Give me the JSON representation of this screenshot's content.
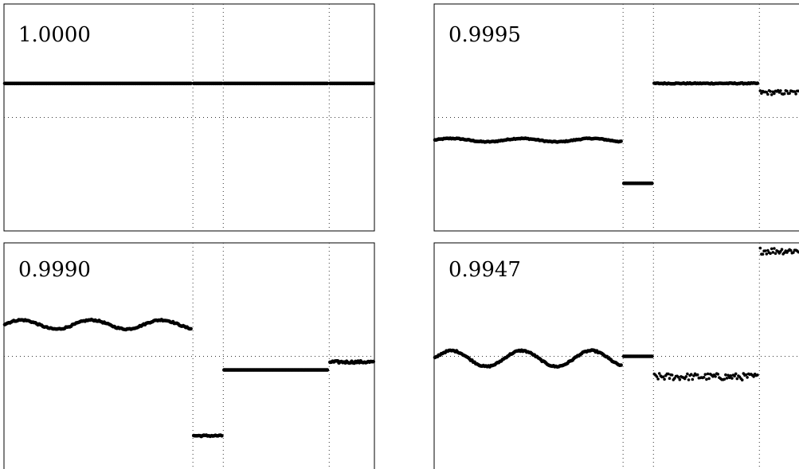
{
  "chart_data": [
    {
      "type": "scatter",
      "label": "1.0000",
      "grid": true,
      "ylim": [
        -1,
        1
      ],
      "segments": [
        {
          "x0": 0.0,
          "x1": 0.51,
          "y": 0.3,
          "wave": 0.0,
          "jitter": 0.0
        },
        {
          "x0": 0.51,
          "x1": 0.592,
          "y": 0.3,
          "wave": 0.0,
          "jitter": 0.0
        },
        {
          "x0": 0.592,
          "x1": 0.878,
          "y": 0.3,
          "wave": 0.0,
          "jitter": 0.0
        },
        {
          "x0": 0.878,
          "x1": 1.0,
          "y": 0.3,
          "wave": 0.0,
          "jitter": 0.0
        }
      ]
    },
    {
      "type": "scatter",
      "label": "0.9995",
      "grid": true,
      "ylim": [
        -1,
        1
      ],
      "segments": [
        {
          "x0": 0.0,
          "x1": 0.51,
          "y": -0.2,
          "wave": 0.015,
          "jitter": 0.004
        },
        {
          "x0": 0.51,
          "x1": 0.592,
          "y": -0.58,
          "wave": 0.0,
          "jitter": 0.0
        },
        {
          "x0": 0.592,
          "x1": 0.878,
          "y": 0.3,
          "wave": 0.0,
          "jitter": 0.004
        },
        {
          "x0": 0.878,
          "x1": 1.0,
          "y": 0.22,
          "wave": 0.0,
          "jitter": 0.02
        }
      ]
    },
    {
      "type": "scatter",
      "label": "0.9990",
      "grid": true,
      "ylim": [
        -1,
        1
      ],
      "segments": [
        {
          "x0": 0.0,
          "x1": 0.51,
          "y": 0.28,
          "wave": 0.04,
          "jitter": 0.006
        },
        {
          "x0": 0.51,
          "x1": 0.592,
          "y": -0.7,
          "wave": 0.0,
          "jitter": 0.006
        },
        {
          "x0": 0.592,
          "x1": 0.878,
          "y": -0.12,
          "wave": 0.0,
          "jitter": 0.0
        },
        {
          "x0": 0.878,
          "x1": 1.0,
          "y": -0.05,
          "wave": 0.0,
          "jitter": 0.01
        }
      ]
    },
    {
      "type": "scatter",
      "label": "0.9947",
      "grid": true,
      "ylim": [
        -1,
        1
      ],
      "segments": [
        {
          "x0": 0.0,
          "x1": 0.51,
          "y": -0.02,
          "wave": 0.07,
          "jitter": 0.006
        },
        {
          "x0": 0.51,
          "x1": 0.592,
          "y": 0.0,
          "wave": 0.0,
          "jitter": 0.0
        },
        {
          "x0": 0.592,
          "x1": 0.878,
          "y": -0.18,
          "wave": 0.0,
          "jitter": 0.03
        },
        {
          "x0": 0.878,
          "x1": 1.0,
          "y": 0.93,
          "wave": 0.0,
          "jitter": 0.03
        }
      ]
    }
  ]
}
